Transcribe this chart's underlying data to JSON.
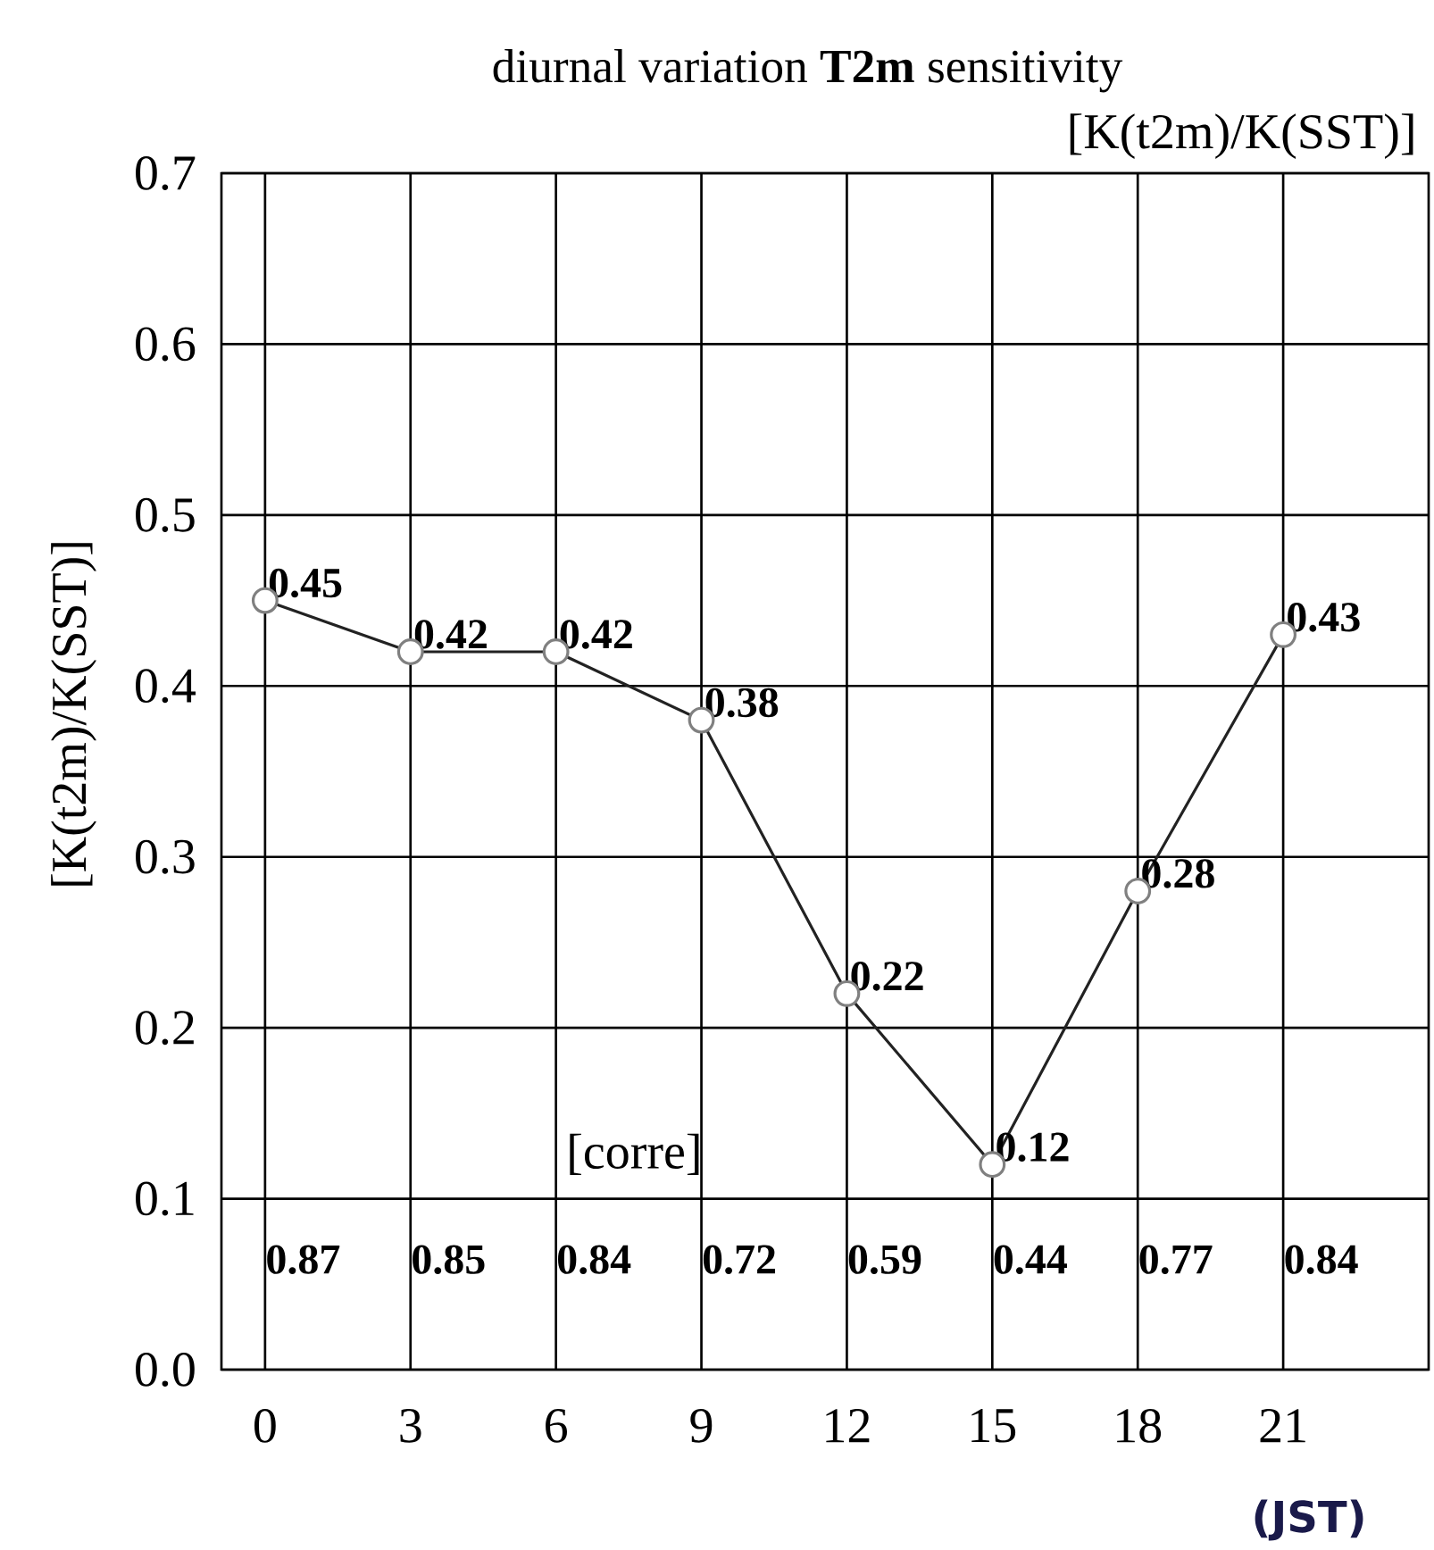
{
  "chart_data": {
    "type": "line",
    "title": "diurnal variation **T2m** sensitivity",
    "subtitle": "[K(t2m)/K(SST)]",
    "ylabel": "[K(t2m)/K(SST)]",
    "xlabel": "(JST)",
    "x": [
      0,
      3,
      6,
      9,
      12,
      15,
      18,
      21
    ],
    "series": [
      {
        "color": "#222222",
        "values": [
          0.45,
          0.42,
          0.42,
          0.38,
          0.22,
          0.12,
          0.28,
          0.43
        ],
        "value_labels": [
          "0.45",
          "0.42",
          "0.42",
          "0.38",
          "0.22",
          "0.12",
          "0.28",
          "0.43"
        ]
      }
    ],
    "xlim": [
      -0.9,
      24
    ],
    "xticks": [
      0,
      3,
      6,
      9,
      12,
      15,
      18,
      21
    ],
    "ylim": [
      0,
      0.7
    ],
    "yticks": [
      {
        "value": 0,
        "label": "0.0"
      },
      0.1,
      0.2,
      0.3,
      0.4,
      0.5,
      0.6,
      0.7
    ],
    "grid": true,
    "marker": "circle",
    "line_style": "solid",
    "annotations": [
      "[corre]",
      "0.87",
      "0.85",
      "0.84",
      "0.72",
      "0.59",
      "0.44",
      "0.77",
      "0.84"
    ]
  }
}
